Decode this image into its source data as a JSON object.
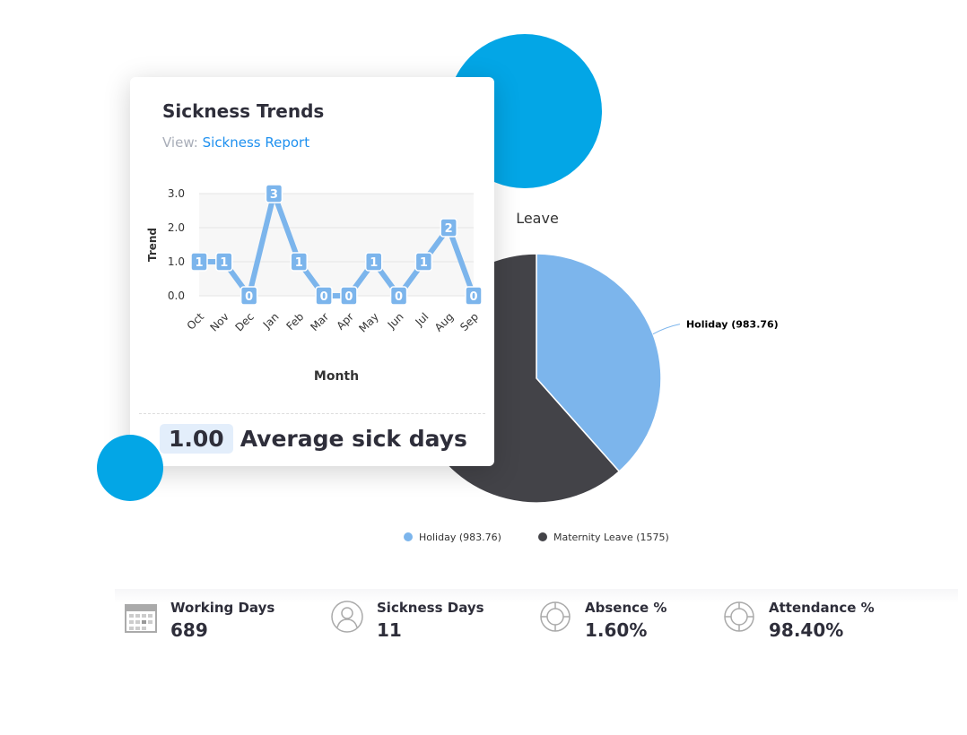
{
  "card": {
    "title": "Sickness Trends",
    "view_label": "View:",
    "view_link": "Sickness Report",
    "average_value": "1.00",
    "average_label": "Average sick days"
  },
  "chart_data": [
    {
      "type": "line",
      "title": "",
      "xlabel": "Month",
      "ylabel": "Trend",
      "categories": [
        "Oct",
        "Nov",
        "Dec",
        "Jan",
        "Feb",
        "Mar",
        "Apr",
        "May",
        "Jun",
        "Jul",
        "Aug",
        "Sep"
      ],
      "values": [
        1,
        1,
        0,
        3,
        1,
        0,
        0,
        1,
        0,
        1,
        2,
        0
      ],
      "ylim": [
        0,
        3
      ],
      "yticks": [
        "0.0",
        "1.0",
        "2.0",
        "3.0"
      ],
      "grid": true,
      "color": "#7cb5ec",
      "data_labels": true
    },
    {
      "type": "pie",
      "title": "Leave",
      "slices": [
        {
          "name": "Holiday",
          "value": 983.76,
          "label": "Holiday (983.76)",
          "color": "#7cb5ec"
        },
        {
          "name": "Maternity Leave",
          "value": 1575,
          "label": "Maternity Leave (1575)",
          "color": "#434348"
        }
      ],
      "legend": "bottom"
    }
  ],
  "stats": [
    {
      "title": "Working Days",
      "value": "689",
      "icon": "calendar-icon"
    },
    {
      "title": "Sickness Days",
      "value": "11",
      "icon": "user-icon"
    },
    {
      "title": "Absence %",
      "value": "1.60%",
      "icon": "donut-icon"
    },
    {
      "title": "Attendance %",
      "value": "98.40%",
      "icon": "donut-icon"
    }
  ],
  "colors": {
    "accent": "#03a6e6",
    "link": "#1e90ef"
  }
}
